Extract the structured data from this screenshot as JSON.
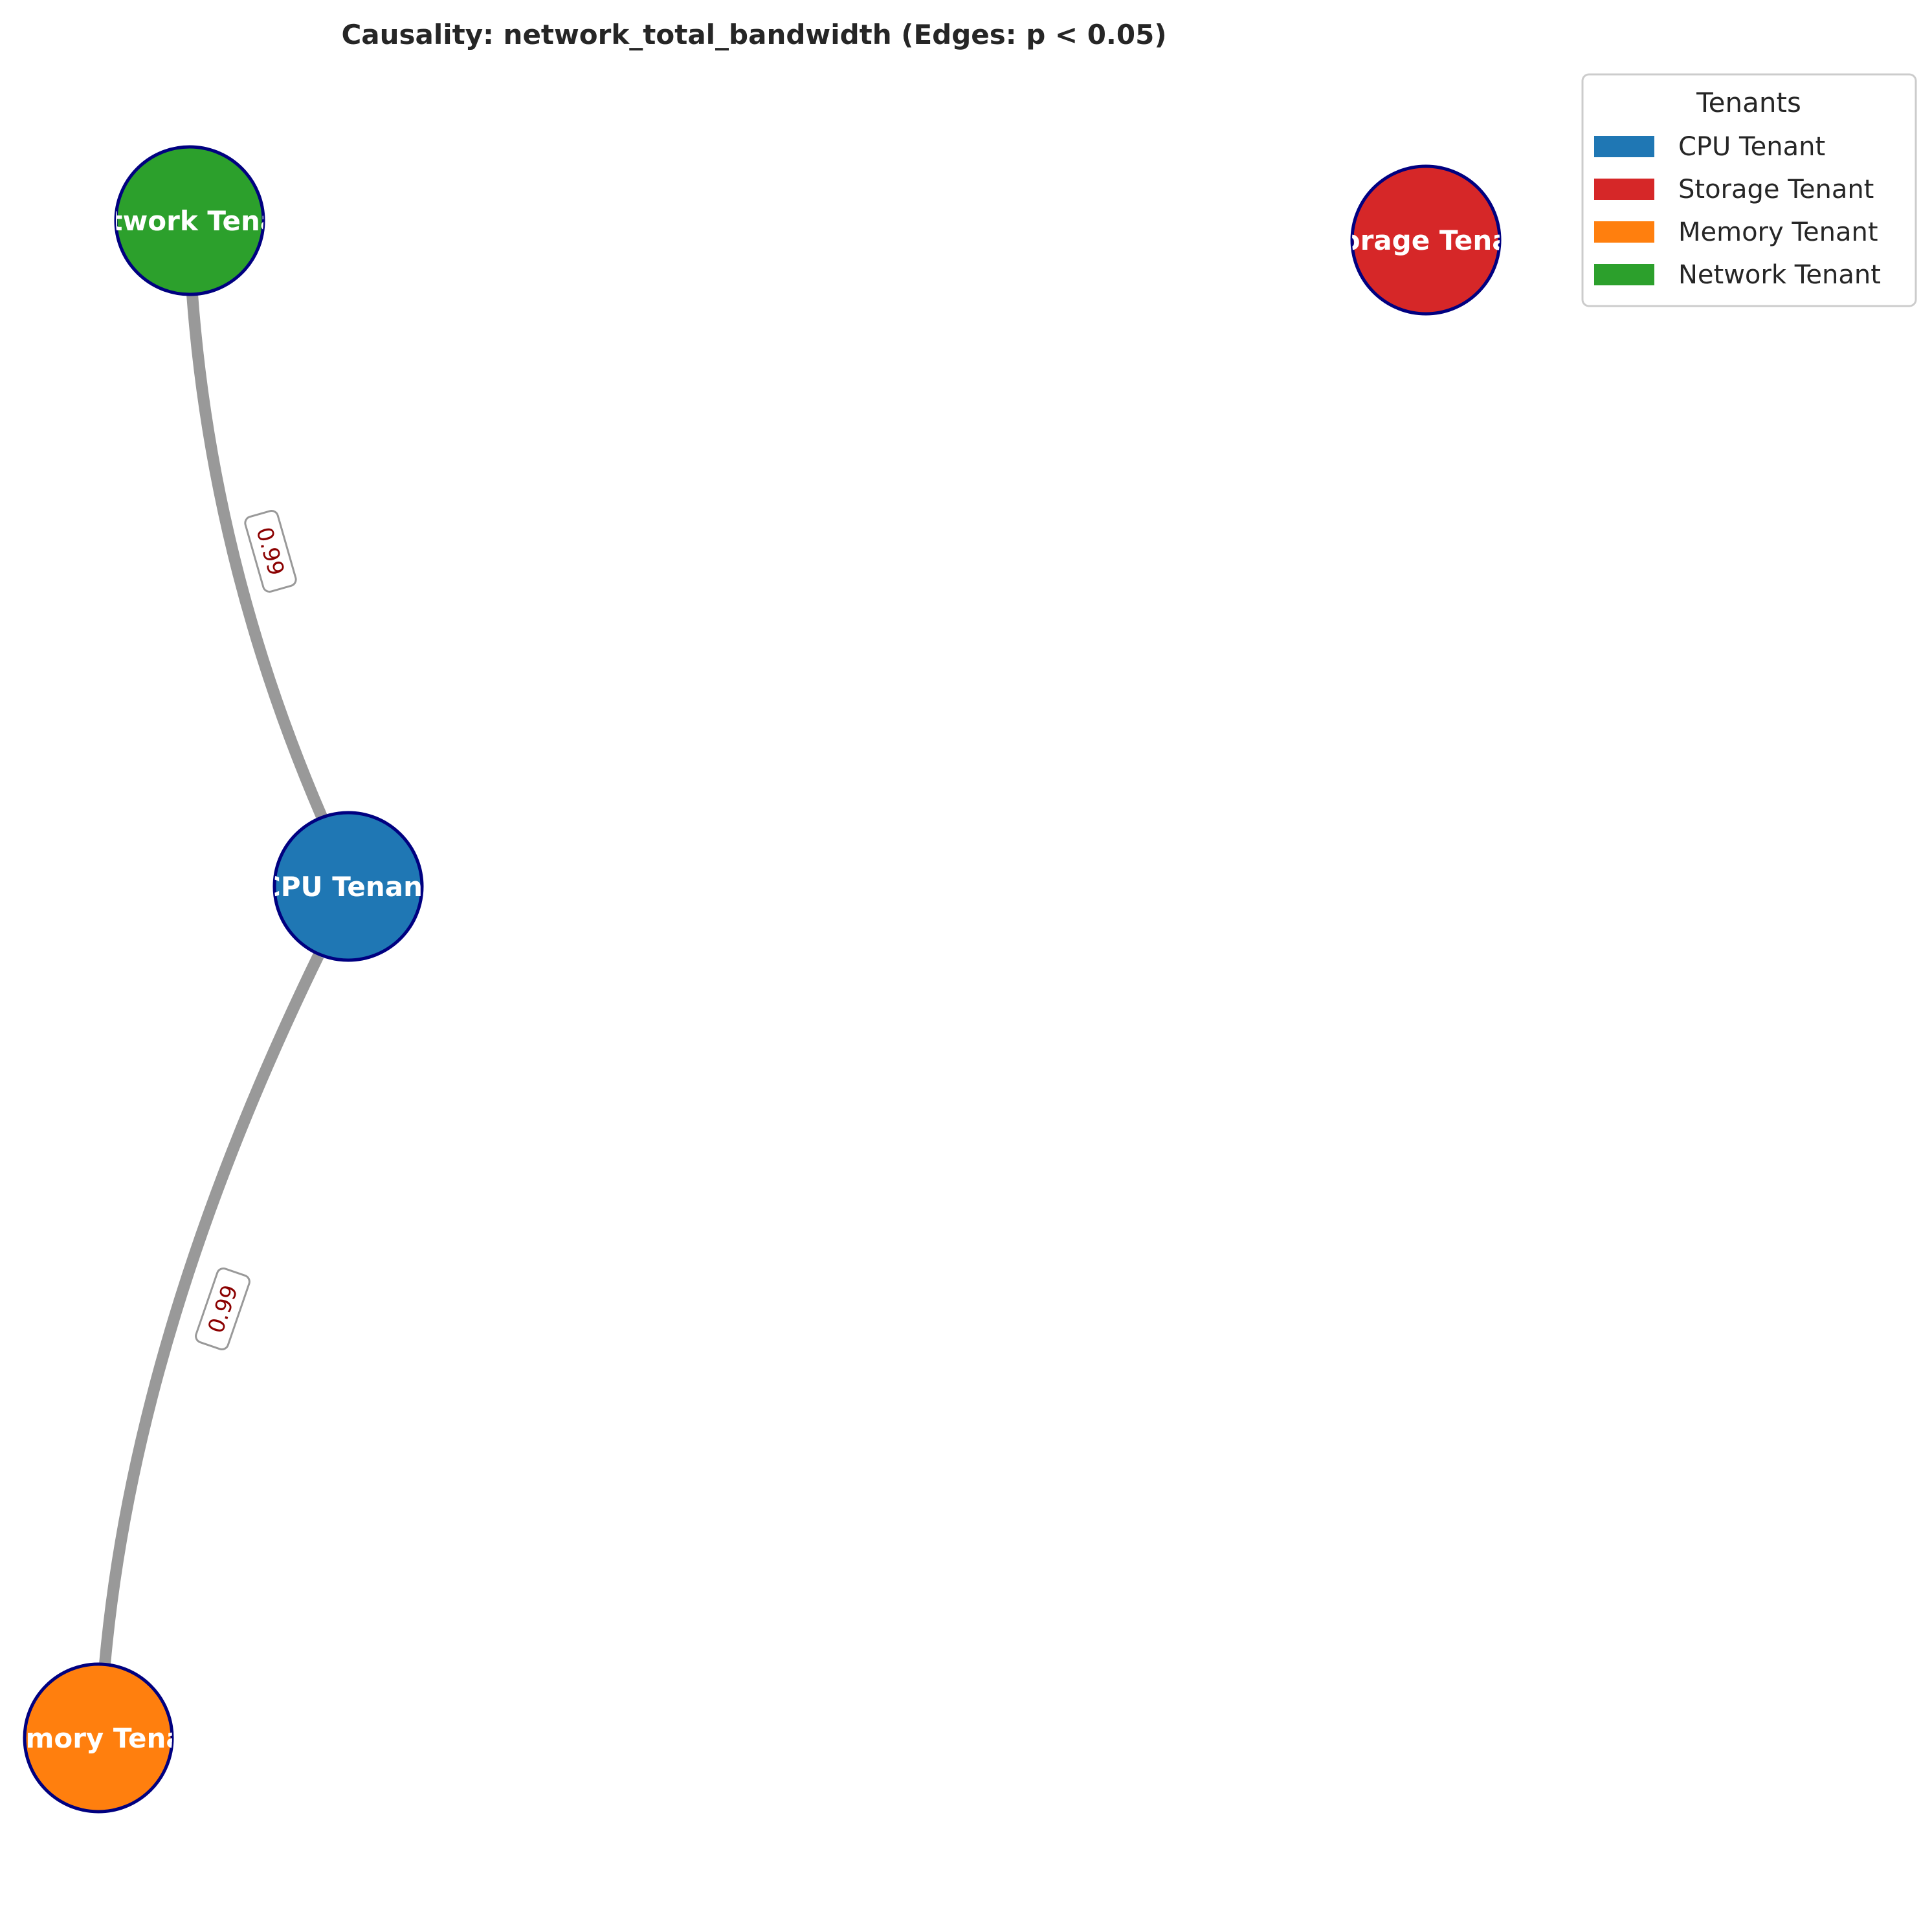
{
  "title": "Causality: network_total_bandwidth (Edges: p < 0.05)",
  "graph": {
    "nodes": [
      {
        "id": "network",
        "label": "Network Tenant",
        "color": "#2ca02c"
      },
      {
        "id": "storage",
        "label": "Storage Tenant",
        "color": "#d62728"
      },
      {
        "id": "cpu",
        "label": "CPU Tenant",
        "color": "#1f77b4"
      },
      {
        "id": "memory",
        "label": "Memory Tenant",
        "color": "#ff7f0e"
      }
    ],
    "edges": [
      {
        "source": "cpu",
        "target": "network",
        "label": "0.99"
      },
      {
        "source": "cpu",
        "target": "memory",
        "label": "0.99"
      }
    ],
    "node_border_color": "#000080",
    "edge_color": "#999999"
  },
  "legend": {
    "title": "Tenants",
    "items": [
      {
        "label": "CPU Tenant",
        "color": "#1f77b4"
      },
      {
        "label": "Storage Tenant",
        "color": "#d62728"
      },
      {
        "label": "Memory Tenant",
        "color": "#ff7f0e"
      },
      {
        "label": "Network Tenant",
        "color": "#2ca02c"
      }
    ]
  }
}
